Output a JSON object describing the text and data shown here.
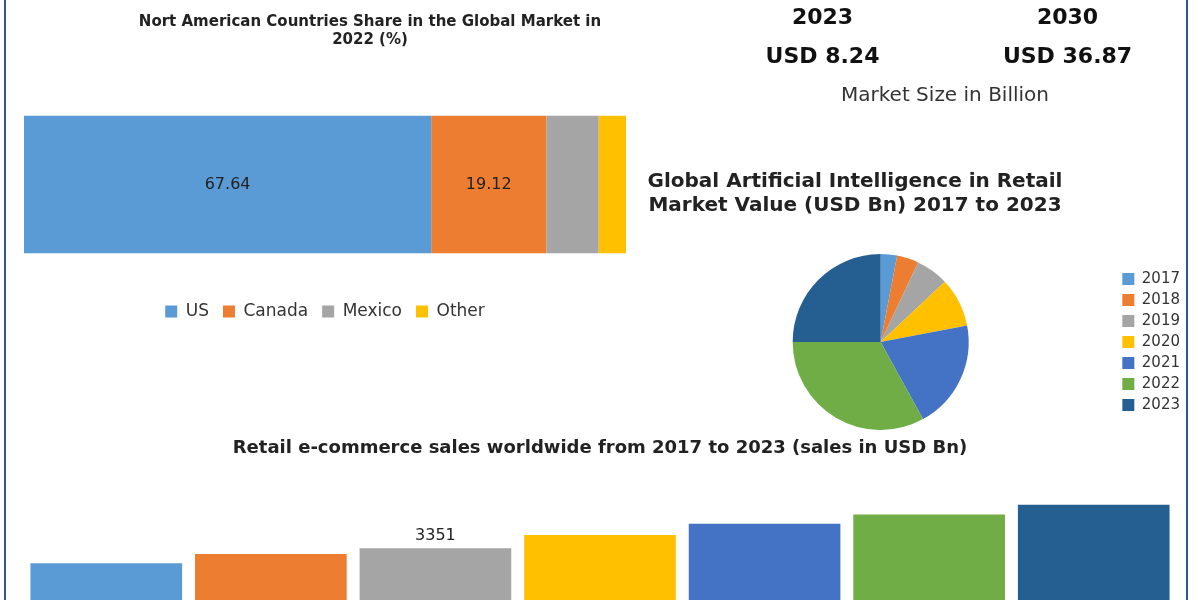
{
  "chart_data": [
    {
      "type": "bar",
      "orientation": "horizontal",
      "stacked": true,
      "title": "Nort American Countries Share in the Global Market in 2022 (%)",
      "categories": [
        null
      ],
      "xlim": [
        0,
        100
      ],
      "legend": "bottom",
      "series": [
        {
          "name": "US",
          "color": "#5b9bd5",
          "values": [
            67.64
          ],
          "value_labels": [
            "67.64"
          ]
        },
        {
          "name": "Canada",
          "color": "#ed7d31",
          "values": [
            19.12
          ],
          "value_labels": [
            "19.12"
          ]
        },
        {
          "name": "Mexico",
          "color": "#a5a5a5",
          "values": [
            8.7
          ],
          "value_labels": [
            null
          ]
        },
        {
          "name": "Other",
          "color": "#ffc000",
          "values": [
            4.54
          ],
          "value_labels": [
            null
          ]
        }
      ]
    },
    {
      "type": "other",
      "annotations": [
        "2023",
        "2030",
        "USD 8.24",
        "USD 36.87",
        "Market Size in Billion"
      ]
    },
    {
      "type": "pie",
      "title": "Global Artificial Intelligence in Retail Market Value (USD Bn) 2017 to 2023",
      "legend": "right",
      "categories": [
        "2017",
        "2018",
        "2019",
        "2020",
        "2021",
        "2022",
        "2023"
      ],
      "values": [
        3,
        4,
        6,
        9,
        20,
        33,
        25
      ],
      "colors": [
        "#5b9bd5",
        "#ed7d31",
        "#a5a5a5",
        "#ffc000",
        "#4472c4",
        "#70ad47",
        "#255e91"
      ]
    },
    {
      "type": "bar",
      "title": "Retail e-commerce sales worldwide from 2017 to 2023 (sales in USD Bn)",
      "categories": [
        null,
        null,
        null,
        null,
        null,
        null,
        null
      ],
      "values": [
        2382,
        2982,
        3351,
        4213,
        4938,
        5542,
        6169
      ],
      "value_labels": [
        null,
        null,
        "3351",
        null,
        null,
        null,
        null
      ],
      "colors": [
        "#5b9bd5",
        "#ed7d31",
        "#a5a5a5",
        "#ffc000",
        "#4472c4",
        "#70ad47",
        "#255e91"
      ]
    }
  ]
}
